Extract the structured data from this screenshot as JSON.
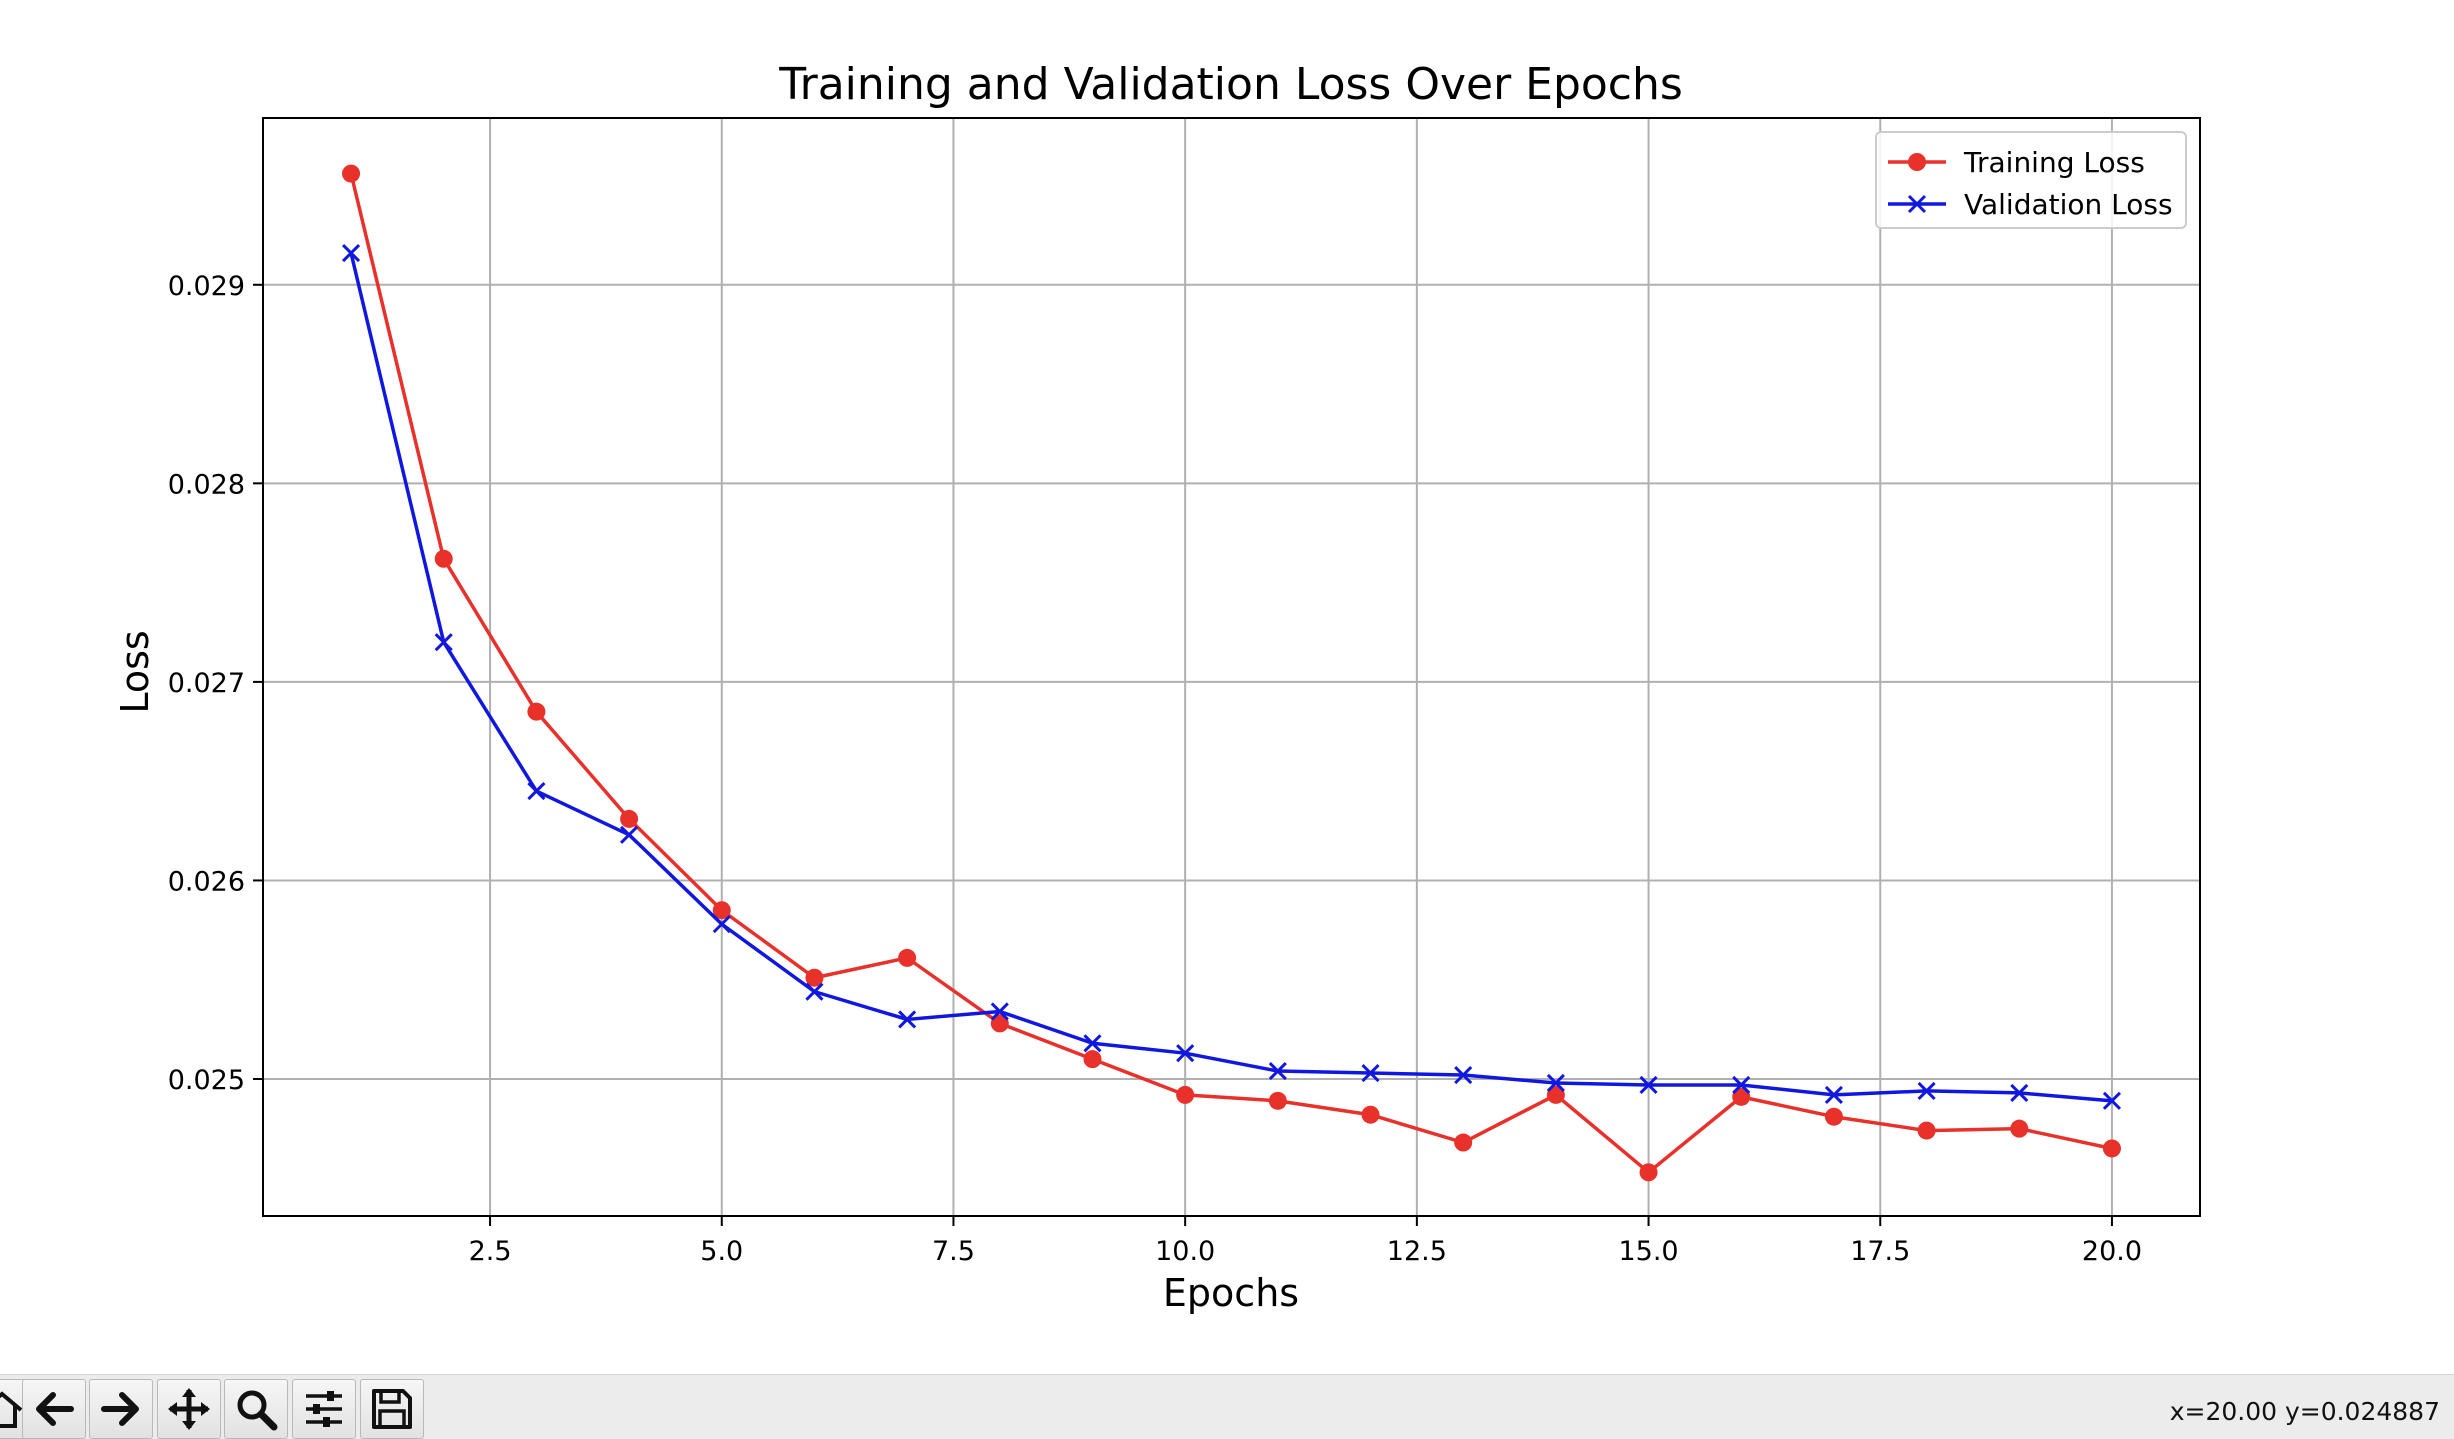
{
  "window": {
    "coordinate_readout": "x=20.00 y=0.024887"
  },
  "toolbar": {
    "buttons": [
      {
        "name": "home-icon"
      },
      {
        "name": "back-arrow-icon"
      },
      {
        "name": "forward-arrow-icon"
      },
      {
        "name": "pan-move-icon"
      },
      {
        "name": "zoom-magnifier-icon"
      },
      {
        "name": "configure-subplots-icon"
      },
      {
        "name": "save-floppy-icon"
      }
    ]
  },
  "colors": {
    "training": "#e8312a",
    "validation": "#1018e0",
    "grid": "#b0b0b0",
    "axes": "#000000"
  },
  "chart_data": {
    "type": "line",
    "title": "Training and Validation Loss Over Epochs",
    "xlabel": "Epochs",
    "ylabel": "Loss",
    "xlim": [
      0.05,
      20.95
    ],
    "ylim": [
      0.02431,
      0.02984
    ],
    "xticks": [
      2.5,
      5.0,
      7.5,
      10.0,
      12.5,
      15.0,
      17.5,
      20.0
    ],
    "xtick_labels": [
      "2.5",
      "5.0",
      "7.5",
      "10.0",
      "12.5",
      "15.0",
      "17.5",
      "20.0"
    ],
    "yticks": [
      0.025,
      0.026,
      0.027,
      0.028,
      0.029
    ],
    "ytick_labels": [
      "0.025",
      "0.026",
      "0.027",
      "0.028",
      "0.029"
    ],
    "grid": true,
    "legend_position": "upper right",
    "x": [
      1,
      2,
      3,
      4,
      5,
      6,
      7,
      8,
      9,
      10,
      11,
      12,
      13,
      14,
      15,
      16,
      17,
      18,
      19,
      20
    ],
    "series": [
      {
        "name": "Training Loss",
        "color": "#e8312a",
        "marker": "circle",
        "values": [
          0.02956,
          0.02762,
          0.02685,
          0.02631,
          0.02585,
          0.02551,
          0.02561,
          0.02528,
          0.0251,
          0.02492,
          0.02489,
          0.02482,
          0.02468,
          0.02492,
          0.02453,
          0.02491,
          0.02481,
          0.02474,
          0.02475,
          0.02465
        ]
      },
      {
        "name": "Validation Loss",
        "color": "#1018e0",
        "marker": "x",
        "values": [
          0.02916,
          0.0272,
          0.02645,
          0.02623,
          0.02578,
          0.02544,
          0.0253,
          0.02534,
          0.02518,
          0.02513,
          0.02504,
          0.02503,
          0.02502,
          0.02498,
          0.02497,
          0.02497,
          0.02492,
          0.02494,
          0.02493,
          0.02489
        ]
      }
    ]
  }
}
